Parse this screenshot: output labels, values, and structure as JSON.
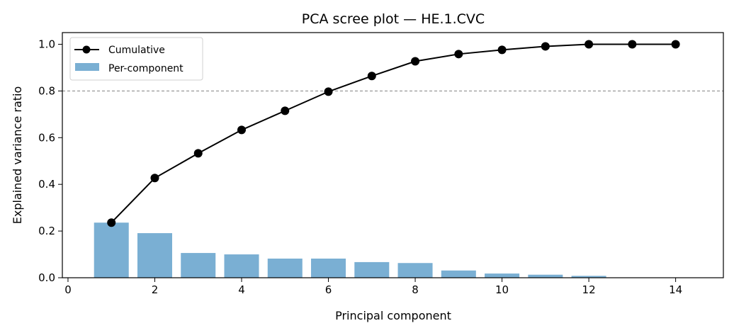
{
  "chart_data": {
    "type": "bar+line",
    "title": "PCA scree plot — HE.1.CVC",
    "xlabel": "Principal component",
    "ylabel": "Explained variance ratio",
    "xlim": [
      -0.13,
      15.1
    ],
    "ylim": [
      0,
      1.05
    ],
    "xticks": [
      0,
      2,
      4,
      6,
      8,
      10,
      12,
      14
    ],
    "yticks": [
      0.0,
      0.2,
      0.4,
      0.6,
      0.8,
      1.0
    ],
    "ytick_labels": [
      "0.0",
      "0.2",
      "0.4",
      "0.6",
      "0.8",
      "1.0"
    ],
    "grid": false,
    "legend_position": "top-left",
    "threshold_line": {
      "y": 0.8,
      "style": "dashed",
      "color": "#808080"
    },
    "x": [
      1,
      2,
      3,
      4,
      5,
      6,
      7,
      8,
      9,
      10,
      11,
      12,
      13,
      14
    ],
    "series": [
      {
        "name": "Cumulative",
        "type": "line",
        "color": "#000000",
        "values": [
          0.236,
          0.427,
          0.533,
          0.633,
          0.715,
          0.797,
          0.864,
          0.927,
          0.958,
          0.976,
          0.991,
          1.0,
          1.0,
          1.0
        ]
      },
      {
        "name": "Per-component",
        "type": "bar",
        "color": "#7aafd3",
        "values": [
          0.236,
          0.191,
          0.106,
          0.1,
          0.082,
          0.082,
          0.067,
          0.063,
          0.031,
          0.018,
          0.013,
          0.008,
          0.0,
          0.0
        ]
      }
    ]
  }
}
